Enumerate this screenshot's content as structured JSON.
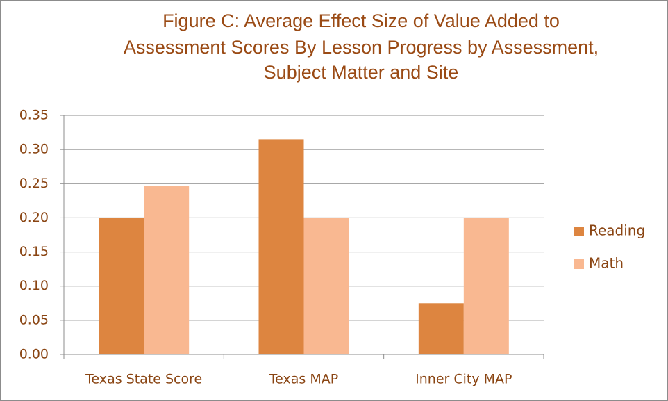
{
  "chart_data": {
    "type": "bar",
    "title": [
      "Figure C:  Average  Effect Size of Value Added to",
      "Assessment Scores By Lesson Progress by Assessment,",
      "Subject Matter and Site"
    ],
    "categories": [
      "Texas State Score",
      "Texas MAP",
      "Inner City MAP"
    ],
    "series": [
      {
        "name": "Reading",
        "color": "#dd8540",
        "values": [
          0.2,
          0.315,
          0.075
        ]
      },
      {
        "name": "Math",
        "color": "#f9b891",
        "values": [
          0.247,
          0.2,
          0.2
        ]
      }
    ],
    "ylim": [
      0,
      0.35
    ],
    "yticks": [
      {
        "value": 0,
        "label": "0.00"
      },
      {
        "value": 0.05,
        "label": "0.05"
      },
      {
        "value": 0.1,
        "label": "0.10"
      },
      {
        "value": 0.15,
        "label": "0.15"
      },
      {
        "value": 0.2,
        "label": "0.20"
      },
      {
        "value": 0.25,
        "label": "0.25"
      },
      {
        "value": 0.3,
        "label": "0.30"
      },
      {
        "value": 0.35,
        "label": "0.35"
      }
    ],
    "grid": true,
    "legend": "right"
  }
}
